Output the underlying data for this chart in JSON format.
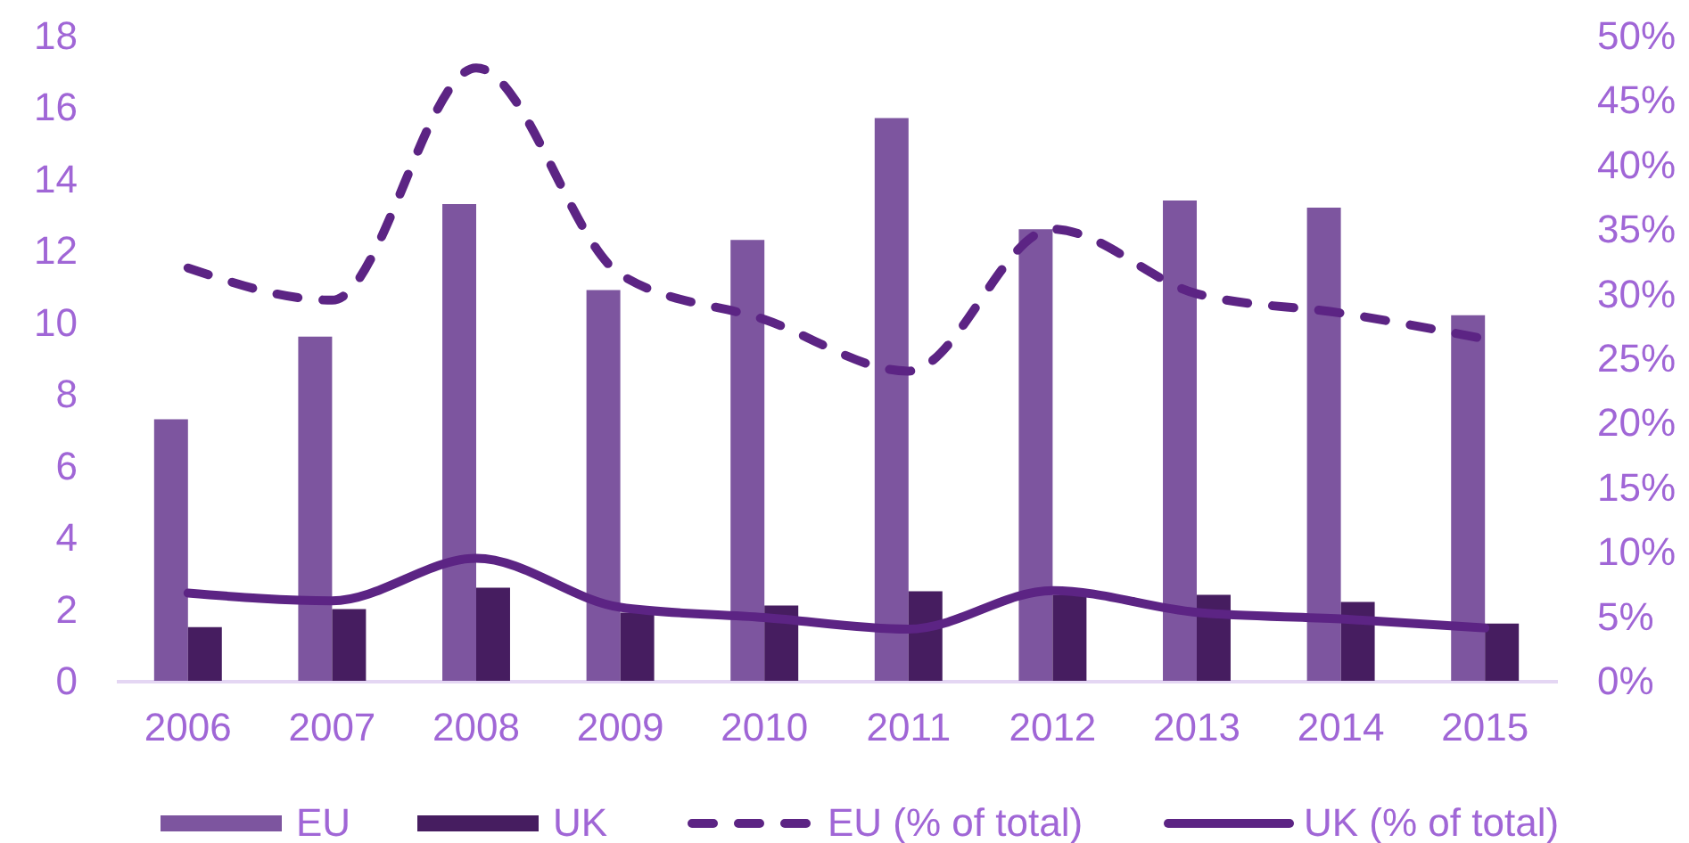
{
  "chart_data": {
    "type": "bar",
    "categories": [
      "2006",
      "2007",
      "2008",
      "2009",
      "2010",
      "2011",
      "2012",
      "2013",
      "2014",
      "2015"
    ],
    "series": [
      {
        "name": "EU",
        "color": "#7d559f",
        "values": [
          7.3,
          9.6,
          13.3,
          10.9,
          12.3,
          15.7,
          12.6,
          13.4,
          13.2,
          10.2
        ]
      },
      {
        "name": "UK",
        "color": "#461d60",
        "values": [
          1.5,
          2.0,
          2.6,
          1.9,
          2.1,
          2.5,
          2.4,
          2.4,
          2.2,
          1.6
        ]
      },
      {
        "name": "EU (% of total)",
        "type": "line",
        "axis": "y2",
        "line_style": "dashed",
        "color": "#5c2484",
        "values": [
          32,
          29.5,
          47.5,
          31.5,
          28,
          24,
          35,
          30,
          28.5,
          26.5
        ]
      },
      {
        "name": "UK (% of total)",
        "type": "line",
        "axis": "y2",
        "line_style": "solid",
        "color": "#5c2484",
        "values": [
          6.8,
          6.2,
          9.5,
          5.7,
          4.9,
          4,
          7,
          5.3,
          4.8,
          4.1
        ]
      }
    ],
    "ylim": [
      0,
      18
    ],
    "yticks": [
      0,
      2,
      4,
      6,
      8,
      10,
      12,
      14,
      16,
      18
    ],
    "y2lim": [
      0,
      50
    ],
    "y2ticks": [
      {
        "value": 0,
        "label": "0%"
      },
      {
        "value": 5,
        "label": "5%"
      },
      {
        "value": 10,
        "label": "10%"
      },
      {
        "value": 15,
        "label": "15%"
      },
      {
        "value": 20,
        "label": "20%"
      },
      {
        "value": 25,
        "label": "25%"
      },
      {
        "value": 30,
        "label": "30%"
      },
      {
        "value": 35,
        "label": "35%"
      },
      {
        "value": 40,
        "label": "40%"
      },
      {
        "value": 45,
        "label": "45%"
      },
      {
        "value": 50,
        "label": "50%"
      }
    ],
    "legend": "bottom"
  }
}
